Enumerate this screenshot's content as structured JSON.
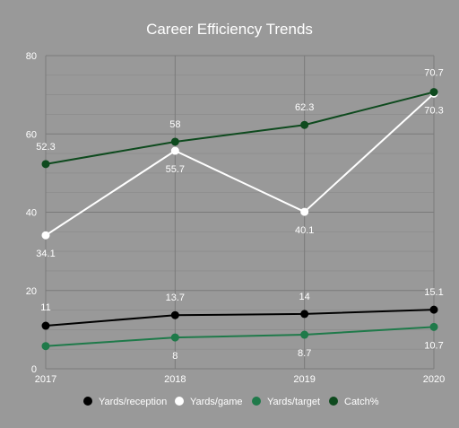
{
  "chart_data": {
    "type": "line",
    "title": "Career Efficiency Trends",
    "xlabel": "",
    "ylabel": "",
    "categories": [
      "2017",
      "2018",
      "2019",
      "2020"
    ],
    "ylim": [
      0,
      80
    ],
    "yticks": [
      0,
      20,
      40,
      60,
      80
    ],
    "grid": true,
    "legend_position": "bottom",
    "series": [
      {
        "name": "Yards/reception",
        "color": "#000000",
        "values": [
          11,
          13.7,
          14,
          15.1
        ],
        "labels": [
          "11",
          "13.7",
          "14",
          "15.1"
        ]
      },
      {
        "name": "Yards/game",
        "color": "#ffffff",
        "values": [
          34.1,
          55.7,
          40.1,
          70.3
        ],
        "labels": [
          "34.1",
          "55.7",
          "40.1",
          "70.3"
        ]
      },
      {
        "name": "Yards/target",
        "color": "#1f7a4a",
        "values": [
          5.8,
          8,
          8.7,
          10.7
        ],
        "labels": [
          "",
          "8",
          "8.7",
          "10.7"
        ]
      },
      {
        "name": "Catch%",
        "color": "#0e4a1e",
        "values": [
          52.3,
          58,
          62.3,
          70.7
        ],
        "labels": [
          "52.3",
          "58",
          "62.3",
          "70.7"
        ]
      }
    ]
  }
}
